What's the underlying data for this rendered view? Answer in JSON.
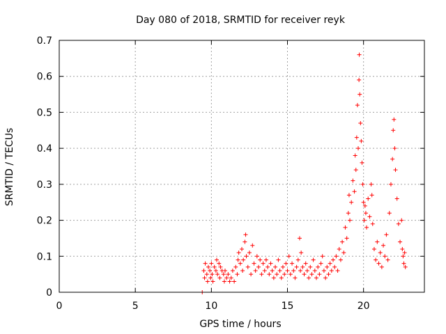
{
  "chart_data": {
    "type": "scatter",
    "title": "Day 080 of 2018, SRMTID for receiver reyk",
    "xlabel": "GPS time / hours",
    "ylabel": "SRMTID / TECUs",
    "xlim": [
      0,
      24
    ],
    "ylim": [
      0,
      0.7
    ],
    "xticks": [
      0,
      5,
      10,
      15,
      20
    ],
    "yticks": [
      0,
      0.1,
      0.2,
      0.3,
      0.4,
      0.5,
      0.6,
      0.7
    ],
    "ytick_labels": [
      "0",
      "0.1",
      "0.2",
      "0.3",
      "0.4",
      "0.5",
      "0.6",
      "0.7"
    ],
    "grid": true,
    "marker": "+",
    "color": "#ff0000",
    "series": [
      {
        "name": "reyk",
        "points": [
          [
            9.4,
            0.0
          ],
          [
            9.5,
            0.06
          ],
          [
            9.55,
            0.04
          ],
          [
            9.6,
            0.08
          ],
          [
            9.7,
            0.05
          ],
          [
            9.75,
            0.03
          ],
          [
            9.8,
            0.07
          ],
          [
            9.9,
            0.06
          ],
          [
            9.95,
            0.04
          ],
          [
            10.0,
            0.08
          ],
          [
            10.05,
            0.05
          ],
          [
            10.1,
            0.03
          ],
          [
            10.2,
            0.07
          ],
          [
            10.3,
            0.06
          ],
          [
            10.35,
            0.09
          ],
          [
            10.4,
            0.05
          ],
          [
            10.5,
            0.08
          ],
          [
            10.55,
            0.04
          ],
          [
            10.6,
            0.07
          ],
          [
            10.7,
            0.06
          ],
          [
            10.8,
            0.05
          ],
          [
            10.85,
            0.03
          ],
          [
            10.9,
            0.06
          ],
          [
            11.0,
            0.04
          ],
          [
            11.1,
            0.05
          ],
          [
            11.2,
            0.03
          ],
          [
            11.3,
            0.04
          ],
          [
            11.4,
            0.06
          ],
          [
            11.5,
            0.03
          ],
          [
            11.6,
            0.07
          ],
          [
            11.7,
            0.05
          ],
          [
            11.75,
            0.09
          ],
          [
            11.8,
            0.11
          ],
          [
            11.9,
            0.08
          ],
          [
            12.0,
            0.12
          ],
          [
            12.05,
            0.06
          ],
          [
            12.1,
            0.09
          ],
          [
            12.2,
            0.14
          ],
          [
            12.25,
            0.16
          ],
          [
            12.3,
            0.1
          ],
          [
            12.4,
            0.07
          ],
          [
            12.5,
            0.11
          ],
          [
            12.6,
            0.05
          ],
          [
            12.7,
            0.13
          ],
          [
            12.8,
            0.08
          ],
          [
            12.9,
            0.06
          ],
          [
            13.0,
            0.1
          ],
          [
            13.1,
            0.07
          ],
          [
            13.2,
            0.09
          ],
          [
            13.3,
            0.05
          ],
          [
            13.4,
            0.08
          ],
          [
            13.5,
            0.06
          ],
          [
            13.6,
            0.09
          ],
          [
            13.7,
            0.07
          ],
          [
            13.8,
            0.05
          ],
          [
            13.9,
            0.08
          ],
          [
            14.0,
            0.06
          ],
          [
            14.1,
            0.04
          ],
          [
            14.2,
            0.07
          ],
          [
            14.3,
            0.05
          ],
          [
            14.4,
            0.09
          ],
          [
            14.5,
            0.06
          ],
          [
            14.6,
            0.04
          ],
          [
            14.7,
            0.07
          ],
          [
            14.8,
            0.05
          ],
          [
            14.9,
            0.08
          ],
          [
            15.0,
            0.06
          ],
          [
            15.1,
            0.1
          ],
          [
            15.2,
            0.05
          ],
          [
            15.3,
            0.08
          ],
          [
            15.4,
            0.06
          ],
          [
            15.5,
            0.04
          ],
          [
            15.6,
            0.07
          ],
          [
            15.7,
            0.09
          ],
          [
            15.8,
            0.15
          ],
          [
            15.85,
            0.06
          ],
          [
            15.9,
            0.11
          ],
          [
            16.0,
            0.07
          ],
          [
            16.1,
            0.05
          ],
          [
            16.2,
            0.08
          ],
          [
            16.3,
            0.06
          ],
          [
            16.4,
            0.04
          ],
          [
            16.5,
            0.07
          ],
          [
            16.6,
            0.05
          ],
          [
            16.7,
            0.09
          ],
          [
            16.8,
            0.06
          ],
          [
            16.9,
            0.04
          ],
          [
            17.0,
            0.07
          ],
          [
            17.1,
            0.05
          ],
          [
            17.2,
            0.08
          ],
          [
            17.3,
            0.1
          ],
          [
            17.4,
            0.06
          ],
          [
            17.5,
            0.04
          ],
          [
            17.6,
            0.07
          ],
          [
            17.7,
            0.05
          ],
          [
            17.8,
            0.08
          ],
          [
            17.9,
            0.06
          ],
          [
            18.0,
            0.09
          ],
          [
            18.1,
            0.07
          ],
          [
            18.2,
            0.1
          ],
          [
            18.3,
            0.06
          ],
          [
            18.4,
            0.12
          ],
          [
            18.5,
            0.09
          ],
          [
            18.6,
            0.14
          ],
          [
            18.7,
            0.11
          ],
          [
            18.8,
            0.18
          ],
          [
            18.9,
            0.15
          ],
          [
            19.0,
            0.22
          ],
          [
            19.05,
            0.27
          ],
          [
            19.1,
            0.2
          ],
          [
            19.2,
            0.25
          ],
          [
            19.3,
            0.31
          ],
          [
            19.4,
            0.28
          ],
          [
            19.45,
            0.38
          ],
          [
            19.5,
            0.34
          ],
          [
            19.55,
            0.43
          ],
          [
            19.6,
            0.52
          ],
          [
            19.65,
            0.4
          ],
          [
            19.7,
            0.59
          ],
          [
            19.72,
            0.66
          ],
          [
            19.75,
            0.55
          ],
          [
            19.8,
            0.47
          ],
          [
            19.85,
            0.42
          ],
          [
            19.9,
            0.36
          ],
          [
            19.95,
            0.3
          ],
          [
            20.0,
            0.25
          ],
          [
            20.05,
            0.2
          ],
          [
            20.1,
            0.24
          ],
          [
            20.15,
            0.22
          ],
          [
            20.2,
            0.18
          ],
          [
            20.3,
            0.26
          ],
          [
            20.4,
            0.21
          ],
          [
            20.5,
            0.3
          ],
          [
            20.55,
            0.27
          ],
          [
            20.6,
            0.19
          ],
          [
            20.7,
            0.12
          ],
          [
            20.8,
            0.09
          ],
          [
            20.9,
            0.14
          ],
          [
            21.0,
            0.08
          ],
          [
            21.1,
            0.11
          ],
          [
            21.2,
            0.07
          ],
          [
            21.3,
            0.13
          ],
          [
            21.4,
            0.1
          ],
          [
            21.5,
            0.16
          ],
          [
            21.6,
            0.09
          ],
          [
            21.7,
            0.22
          ],
          [
            21.8,
            0.3
          ],
          [
            21.9,
            0.37
          ],
          [
            21.95,
            0.45
          ],
          [
            22.0,
            0.48
          ],
          [
            22.05,
            0.4
          ],
          [
            22.1,
            0.34
          ],
          [
            22.2,
            0.26
          ],
          [
            22.3,
            0.19
          ],
          [
            22.4,
            0.14
          ],
          [
            22.5,
            0.2
          ],
          [
            22.55,
            0.12
          ],
          [
            22.6,
            0.1
          ],
          [
            22.65,
            0.08
          ],
          [
            22.7,
            0.11
          ],
          [
            22.75,
            0.07
          ]
        ]
      }
    ]
  }
}
